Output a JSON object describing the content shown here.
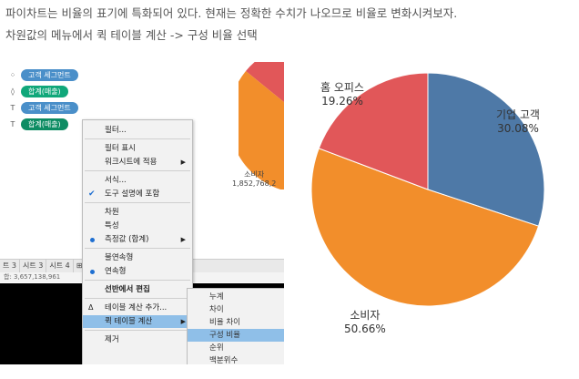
{
  "intro": {
    "line1": "파이차트는 비율의 표기에 특화되어 있다. 현재는 정확한 수치가 나오므로 비율로 변화시켜보자.",
    "line2": "차원값의 메뉴에서 퀵 테이블 계산 -> 구성 비율 선택"
  },
  "marks_card": {
    "items": [
      {
        "icon": "color-icon",
        "glyph": "⁘",
        "label": "고객 세그먼트",
        "color": "#4a8fc9"
      },
      {
        "icon": "angle-icon",
        "glyph": "◊",
        "label": "합계(매출)",
        "color": "#10a77a"
      },
      {
        "icon": "detail-icon",
        "glyph": "T",
        "label": "고객 세그먼트",
        "color": "#4a8fc9"
      },
      {
        "icon": "label-icon",
        "glyph": "T",
        "label": "합계(매출)",
        "color": "#0d8c63"
      }
    ]
  },
  "sheet_tabs": [
    "트 3",
    "시트 3",
    "시트 4"
  ],
  "status_text": "합: 3,657,138,961",
  "small_pie": {
    "label": "소비자",
    "value": "1,852,768,2"
  },
  "context_menu": {
    "items": {
      "filter": "필터...",
      "show_filter": "필터 표시",
      "apply_worksheets": "워크시트에 적용",
      "format": "서식...",
      "include_tooltip": "도구 설명에 포함",
      "dimension": "차원",
      "attribute": "특성",
      "measure": "측정값 (합계)",
      "discrete": "불연속형",
      "continuous": "연속형",
      "edit_in_shelf": "선반에서 편집",
      "add_table_calc": "테이블 계산 추가...",
      "quick_table_calc": "퀵 테이블 계산",
      "remove": "제거"
    }
  },
  "submenu": {
    "items": [
      "누계",
      "차이",
      "비율 차이",
      "구성 비율",
      "순위",
      "백분위수"
    ],
    "selected_index": 3
  },
  "chart_data": {
    "type": "pie",
    "categories": [
      "기업 고객",
      "소비자",
      "홈 오피스"
    ],
    "values": [
      30.08,
      50.66,
      19.26
    ],
    "labels": [
      "30.08%",
      "50.66%",
      "19.26%"
    ],
    "colors": [
      "#4e79a7",
      "#f28e2b",
      "#e15759"
    ]
  }
}
